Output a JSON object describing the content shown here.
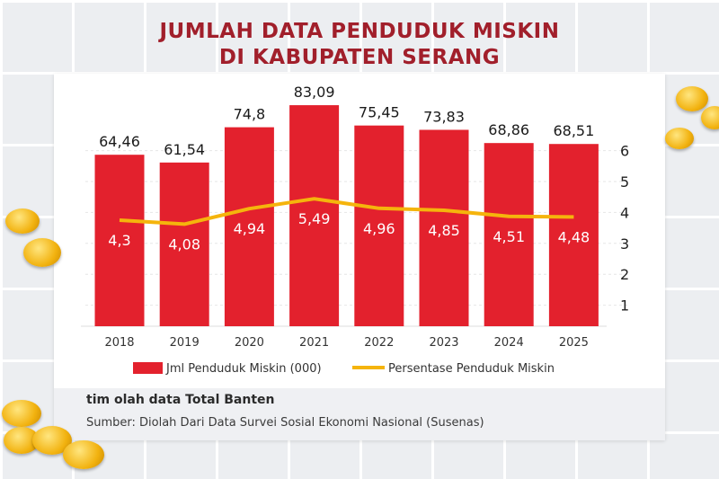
{
  "title": {
    "line1": "JUMLAH DATA PENDUDUK MISKIN",
    "line2": "DI KABUPATEN SERANG"
  },
  "chart_data": {
    "type": "bar",
    "categories": [
      "2018",
      "2019",
      "2020",
      "2021",
      "2022",
      "2023",
      "2024",
      "2025"
    ],
    "series": [
      {
        "name": "Jml Penduduk Miskin (000)",
        "type": "bar",
        "values": [
          64.46,
          61.54,
          74.8,
          83.09,
          75.45,
          73.83,
          68.86,
          68.51
        ],
        "labels": [
          "64,46",
          "61,54",
          "74,8",
          "83,09",
          "75,45",
          "73,83",
          "68,86",
          "68,51"
        ],
        "color": "#e3212d"
      },
      {
        "name": "Persentase Penduduk Miskin",
        "type": "line",
        "values": [
          4.3,
          4.08,
          4.94,
          5.49,
          4.96,
          4.85,
          4.51,
          4.48
        ],
        "labels": [
          "4,3",
          "4,08",
          "4,94",
          "5,49",
          "4,96",
          "4,85",
          "4,51",
          "4,48"
        ],
        "color": "#f5b40c"
      }
    ],
    "right_axis_ticks": [
      "1",
      "2",
      "3",
      "4",
      "5",
      "6"
    ],
    "grid": true,
    "legend": "bottom"
  },
  "footer": {
    "credit": "tim olah data Total Banten",
    "source": "Sumber: Diolah Dari Data Survei Sosial Ekonomi Nasional (Susenas)"
  }
}
